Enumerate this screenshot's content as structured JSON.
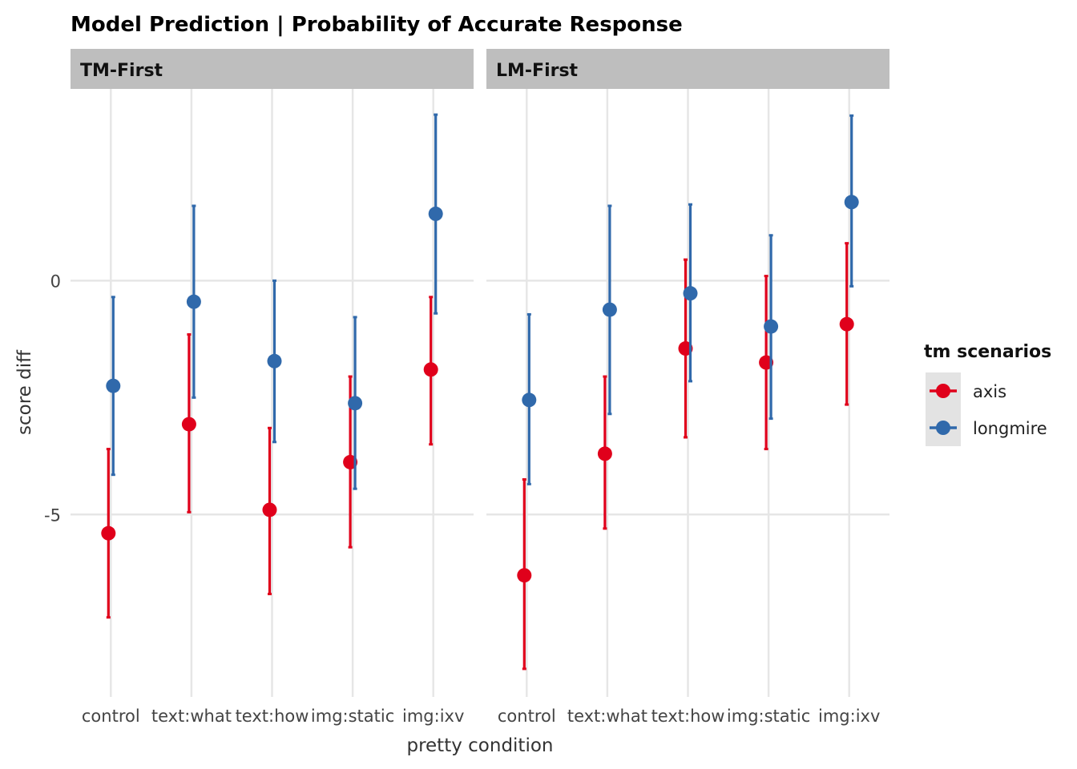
{
  "chart_data": {
    "type": "scatter",
    "title": "Model Prediction | Probability of Accurate Response",
    "xlabel": "pretty condition",
    "ylabel": "score diff",
    "categories": [
      "control",
      "text:what",
      "text:how",
      "img:static",
      "img:ixv"
    ],
    "y_ticks": [
      0,
      -5
    ],
    "y_tick_labels": [
      "0",
      "-5"
    ],
    "ylim": [
      -8.9,
      4.1
    ],
    "grid": true,
    "legend": {
      "title": "tm scenarios",
      "placement": "right",
      "entries": [
        {
          "name": "axis",
          "color": "#E0001B"
        },
        {
          "name": "longmire",
          "color": "#3069AB"
        }
      ]
    },
    "panels": [
      {
        "name": "TM-First",
        "series": [
          {
            "name": "axis",
            "color": "#E0001B",
            "values": [
              -5.4,
              -3.07,
              -4.9,
              -3.88,
              -1.9
            ],
            "lower": [
              -7.2,
              -4.95,
              -6.7,
              -5.7,
              -3.5
            ],
            "upper": [
              -3.6,
              -1.15,
              -3.15,
              -2.05,
              -0.35
            ]
          },
          {
            "name": "longmire",
            "color": "#3069AB",
            "values": [
              -2.25,
              -0.45,
              -1.72,
              -2.62,
              1.43
            ],
            "lower": [
              -4.15,
              -2.5,
              -3.45,
              -4.45,
              -0.7
            ],
            "upper": [
              -0.35,
              1.6,
              0.0,
              -0.78,
              3.55
            ]
          }
        ]
      },
      {
        "name": "LM-First",
        "series": [
          {
            "name": "axis",
            "color": "#E0001B",
            "values": [
              -6.3,
              -3.7,
              -1.45,
              -1.75,
              -0.93
            ],
            "lower": [
              -8.3,
              -5.3,
              -3.35,
              -3.6,
              -2.65
            ],
            "upper": [
              -4.25,
              -2.05,
              0.45,
              0.1,
              0.8
            ]
          },
          {
            "name": "longmire",
            "color": "#3069AB",
            "values": [
              -2.55,
              -0.62,
              -0.27,
              -0.98,
              1.68
            ],
            "lower": [
              -4.35,
              -2.85,
              -2.15,
              -2.95,
              -0.12
            ],
            "upper": [
              -0.72,
              1.6,
              1.63,
              0.97,
              3.53
            ]
          }
        ]
      }
    ]
  }
}
